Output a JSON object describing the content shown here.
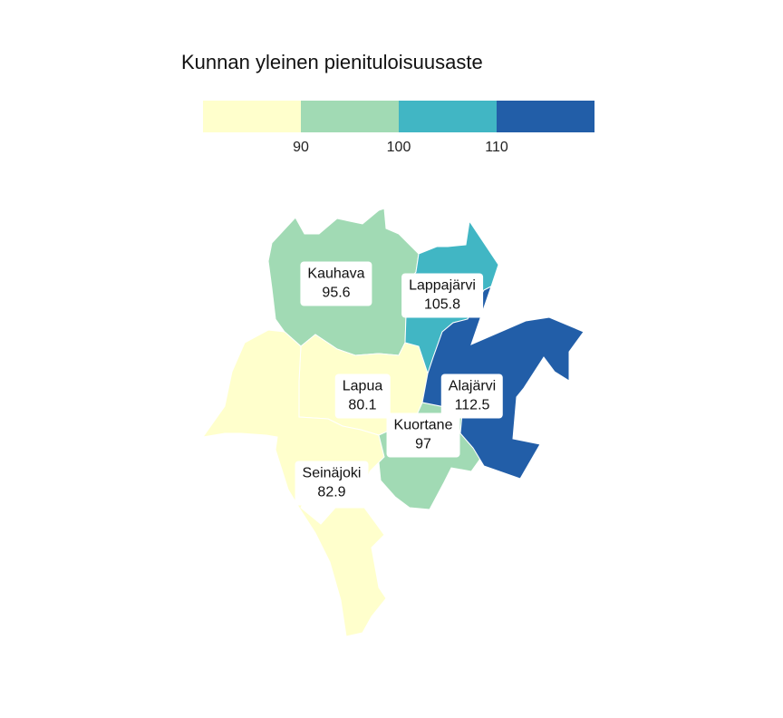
{
  "legend": {
    "title": "Kunnan yleinen pienituloisuusaste",
    "colors": [
      "#ffffcc",
      "#a1dab4",
      "#41b6c4",
      "#225ea8"
    ],
    "ticks": [
      "90",
      "100",
      "110"
    ]
  },
  "municipalities": [
    {
      "name": "Kauhava",
      "value": "95.6",
      "color": "#a1dab4"
    },
    {
      "name": "Lappajärvi",
      "value": "105.8",
      "color": "#41b6c4"
    },
    {
      "name": "Lapua",
      "value": "80.1",
      "color": "#ffffcc"
    },
    {
      "name": "Alajärvi",
      "value": "112.5",
      "color": "#225ea8"
    },
    {
      "name": "Kuortane",
      "value": "97",
      "color": "#a1dab4"
    },
    {
      "name": "Seinäjoki",
      "value": "82.9",
      "color": "#ffffcc"
    }
  ]
}
